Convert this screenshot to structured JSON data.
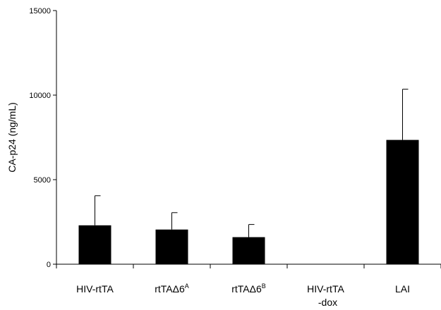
{
  "chart_data": {
    "type": "bar",
    "title": "",
    "xlabel": "",
    "ylabel": "CA-p24 (ng/mL)",
    "ylim": [
      0,
      15000
    ],
    "yticks": [
      0,
      5000,
      10000,
      15000
    ],
    "ytick_labels": [
      "0",
      "5000",
      "10000",
      "15000"
    ],
    "grid": false,
    "legend": "none",
    "bar_color": "#000000",
    "categories": [
      {
        "text": "HIV-rtTA",
        "sup": "",
        "line2": ""
      },
      {
        "text": "rtTAΔ6",
        "sup": "A",
        "line2": ""
      },
      {
        "text": "rtTAΔ6",
        "sup": "B",
        "line2": ""
      },
      {
        "text": "HIV-rtTA",
        "sup": "",
        "line2": "-dox"
      },
      {
        "text": "LAI",
        "sup": "",
        "line2": ""
      }
    ],
    "values": [
      2300,
      2050,
      1600,
      0,
      7350
    ],
    "errors": [
      1750,
      1000,
      750,
      0,
      3000
    ]
  }
}
